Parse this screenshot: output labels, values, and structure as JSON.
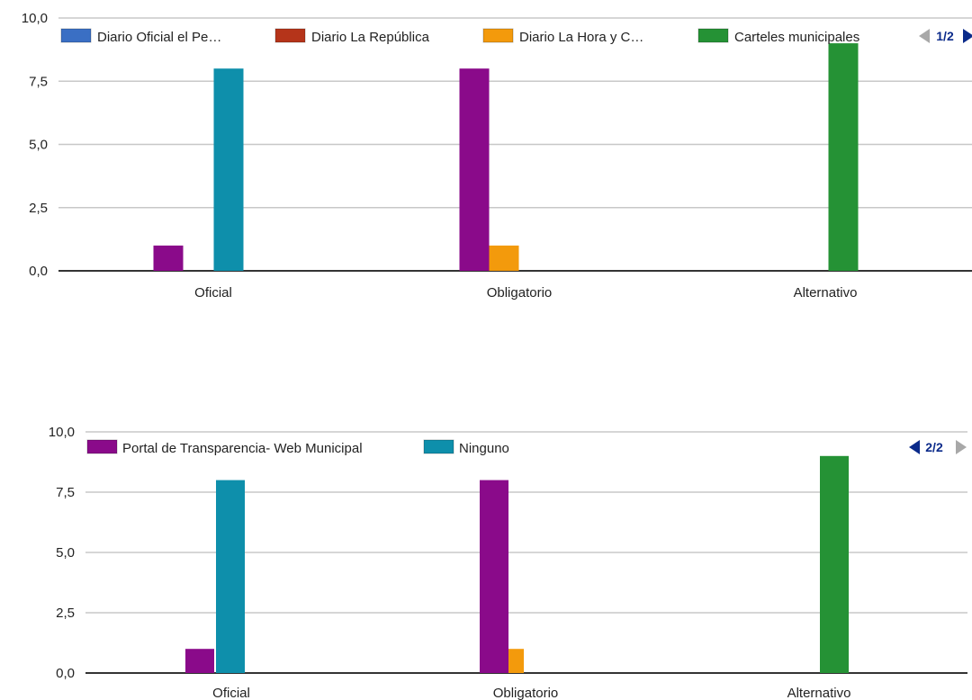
{
  "colors": {
    "diario_oficial": "#3a6fc4",
    "diario_republica": "#b5341a",
    "diario_hora": "#f39a0c",
    "carteles": "#259235",
    "portal": "#8a0a8a",
    "ninguno": "#0e8fab",
    "pager_active": "#0a2a8a",
    "pager_inactive": "#a8a8a8"
  },
  "chart_data": [
    {
      "type": "bar",
      "categories": [
        "Oficial",
        "Obligatorio",
        "Alternativo"
      ],
      "ylim": [
        0,
        10
      ],
      "yticks": [
        "0,0",
        "2,5",
        "5,0",
        "7,5",
        "10,0"
      ],
      "ytick_values": [
        0,
        2.5,
        5,
        7.5,
        10
      ],
      "series": [
        {
          "name": "Diario Oficial el Pe…",
          "color_key": "diario_oficial",
          "values": [
            0,
            0,
            0
          ]
        },
        {
          "name": "Diario La República",
          "color_key": "diario_republica",
          "values": [
            0,
            0,
            0
          ]
        },
        {
          "name": "Diario La Hora y C…",
          "color_key": "diario_hora",
          "values": [
            0,
            1,
            0
          ]
        },
        {
          "name": "Carteles municipales",
          "color_key": "carteles",
          "values": [
            0,
            0,
            9
          ]
        },
        {
          "name": "",
          "color_key": "portal",
          "values": [
            1,
            8,
            0
          ]
        },
        {
          "name": "",
          "color_key": "ninguno",
          "values": [
            8,
            0,
            0
          ]
        }
      ],
      "legend_visible": [
        0,
        1,
        2,
        3
      ],
      "pager": {
        "label": "1/2",
        "prev_enabled": false,
        "next_enabled": true
      },
      "legend_position": "top"
    },
    {
      "type": "bar",
      "categories": [
        "Oficial",
        "Obligatorio",
        "Alternativo"
      ],
      "ylim": [
        0,
        10
      ],
      "yticks": [
        "0,0",
        "2,5",
        "5,0",
        "7,5",
        "10,0"
      ],
      "ytick_values": [
        0,
        2.5,
        5,
        7.5,
        10
      ],
      "series": [
        {
          "name": "",
          "color_key": "diario_oficial",
          "values": [
            0,
            0,
            0
          ]
        },
        {
          "name": "",
          "color_key": "diario_republica",
          "values": [
            0,
            0,
            0
          ]
        },
        {
          "name": "",
          "color_key": "diario_hora",
          "values": [
            0,
            1,
            0
          ]
        },
        {
          "name": "",
          "color_key": "carteles",
          "values": [
            0,
            0,
            9
          ]
        },
        {
          "name": "Portal de Transparencia- Web Municipal",
          "color_key": "portal",
          "values": [
            1,
            8,
            0
          ]
        },
        {
          "name": "Ninguno",
          "color_key": "ninguno",
          "values": [
            8,
            0,
            0
          ]
        }
      ],
      "legend_visible": [
        4,
        5
      ],
      "pager": {
        "label": "2/2",
        "prev_enabled": true,
        "next_enabled": false
      },
      "legend_position": "top"
    }
  ]
}
